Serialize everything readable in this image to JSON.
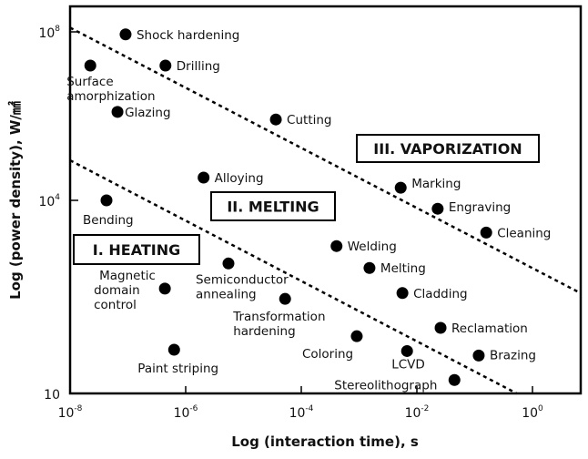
{
  "chart_data": {
    "type": "scatter",
    "xlabel": "Log (interaction time), s",
    "ylabel": "Log (power density), W/㎟",
    "x_scale": "log",
    "y_scale": "log",
    "xlim": [
      1e-08,
      10
    ],
    "ylim": [
      10,
      100000000.0
    ],
    "x_ticks": [
      {
        "exp": -8,
        "label": "10",
        "sup": "-8"
      },
      {
        "exp": -6,
        "label": "10",
        "sup": "-6"
      },
      {
        "exp": -4,
        "label": "10",
        "sup": "-4"
      },
      {
        "exp": -2,
        "label": "10",
        "sup": "-2"
      },
      {
        "exp": 0,
        "label": "10",
        "sup": "0"
      }
    ],
    "y_ticks": [
      {
        "exp": 8,
        "label": "10",
        "sup": "8"
      },
      {
        "exp": 4,
        "label": "10",
        "sup": "4"
      },
      {
        "exp": 1,
        "label": "10",
        "sup": ""
      }
    ],
    "points": [
      {
        "name": "Shock hardening",
        "log_x": -7.04,
        "log_y": 7.94
      },
      {
        "name": "Surface amorphization",
        "log_x": -7.65,
        "log_y": 7.2
      },
      {
        "name": "Drilling",
        "log_x": -6.35,
        "log_y": 7.2
      },
      {
        "name": "Glazing",
        "log_x": -7.18,
        "log_y": 6.1
      },
      {
        "name": "Cutting",
        "log_x": -4.44,
        "log_y": 5.92
      },
      {
        "name": "Alloying",
        "log_x": -5.69,
        "log_y": 4.54
      },
      {
        "name": "Bending",
        "log_x": -7.37,
        "log_y": 4.0
      },
      {
        "name": "Marking",
        "log_x": -2.28,
        "log_y": 4.3
      },
      {
        "name": "Engraving",
        "log_x": -1.64,
        "log_y": 3.87
      },
      {
        "name": "Cleaning",
        "log_x": -0.8,
        "log_y": 3.5
      },
      {
        "name": "Welding",
        "log_x": -3.39,
        "log_y": 3.29
      },
      {
        "name": "Melting",
        "log_x": -2.82,
        "log_y": 2.95
      },
      {
        "name": "Cladding",
        "log_x": -2.25,
        "log_y": 2.56
      },
      {
        "name": "Reclamation",
        "log_x": -1.59,
        "log_y": 2.02
      },
      {
        "name": "Brazing",
        "log_x": -0.93,
        "log_y": 1.59
      },
      {
        "name": "Semiconductor annealing",
        "log_x": -5.26,
        "log_y": 3.02
      },
      {
        "name": "Magnetic domain control",
        "log_x": -6.36,
        "log_y": 2.63
      },
      {
        "name": "Transformation hardening",
        "log_x": -4.28,
        "log_y": 2.47
      },
      {
        "name": "Coloring",
        "log_x": -3.04,
        "log_y": 1.89
      },
      {
        "name": "LCVD",
        "log_x": -2.17,
        "log_y": 1.66
      },
      {
        "name": "Paint striping",
        "log_x": -6.2,
        "log_y": 1.68
      },
      {
        "name": "Stereolithograph",
        "log_x": -1.35,
        "log_y": 1.21
      }
    ],
    "boundaries": [
      {
        "log_x": [
          -8,
          0.83
        ],
        "log_y": [
          8.1,
          2.56
        ],
        "style": "dashed"
      },
      {
        "log_x": [
          -8,
          -0.27
        ],
        "log_y": [
          4.95,
          1.0
        ],
        "style": "dashed"
      }
    ],
    "regions": [
      {
        "label": "I. HEATING"
      },
      {
        "label": "II. MELTING"
      },
      {
        "label": "III. VAPORIZATION"
      }
    ],
    "grid": false,
    "legend": "none"
  }
}
